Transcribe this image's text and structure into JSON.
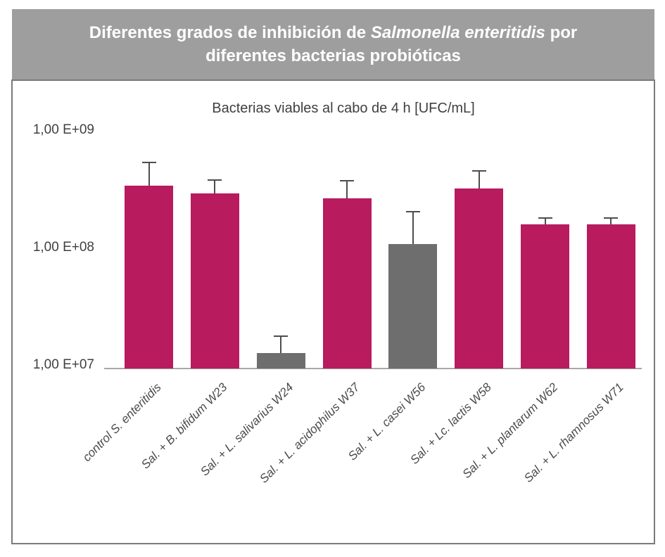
{
  "header": {
    "title_prefix": "Diferentes grados de inhibición de ",
    "title_italic": "Salmonella enteritidis",
    "title_suffix": " por",
    "title_line2": "diferentes bacterias probióticas",
    "background_color": "#9e9e9e",
    "text_color": "#ffffff"
  },
  "chart_data": {
    "type": "bar",
    "title": "Bacterias viables al cabo de 4 h [UFC/mL]",
    "categories": [
      "control S. enteritidis",
      "Sal. + B. bifidum W23",
      "Sal. + L. salivarius W24",
      "Sal. + L. acidophilus W37",
      "Sal. + L. casei W56",
      "Sal. + Lc. lactis W58",
      "Sal. + L. plantarum W62",
      "Sal. + L. rhamnosus W71"
    ],
    "values": [
      360000000,
      310000000,
      13500000,
      280000000,
      115000000,
      340000000,
      170000000,
      170000000
    ],
    "error_top": [
      580000000,
      410000000,
      19000000,
      400000000,
      220000000,
      490000000,
      195000000,
      195000000
    ],
    "bar_colors": [
      "#b81b5e",
      "#b81b5e",
      "#6e6e6e",
      "#b81b5e",
      "#6e6e6e",
      "#b81b5e",
      "#b81b5e",
      "#b81b5e"
    ],
    "y_axis": {
      "scale": "log",
      "ylim": [
        10000000,
        1000000000
      ],
      "tick_labels": [
        "1,00 E+09",
        "1,00 E+08",
        "1,00 E+07"
      ],
      "tick_values": [
        1000000000,
        100000000,
        10000000
      ]
    },
    "x_label_style": "italic, rotated 45°",
    "grid": false,
    "legend": false,
    "error_bar_color": "#4d4d4d",
    "axis_line_color": "#a8a8a8"
  }
}
